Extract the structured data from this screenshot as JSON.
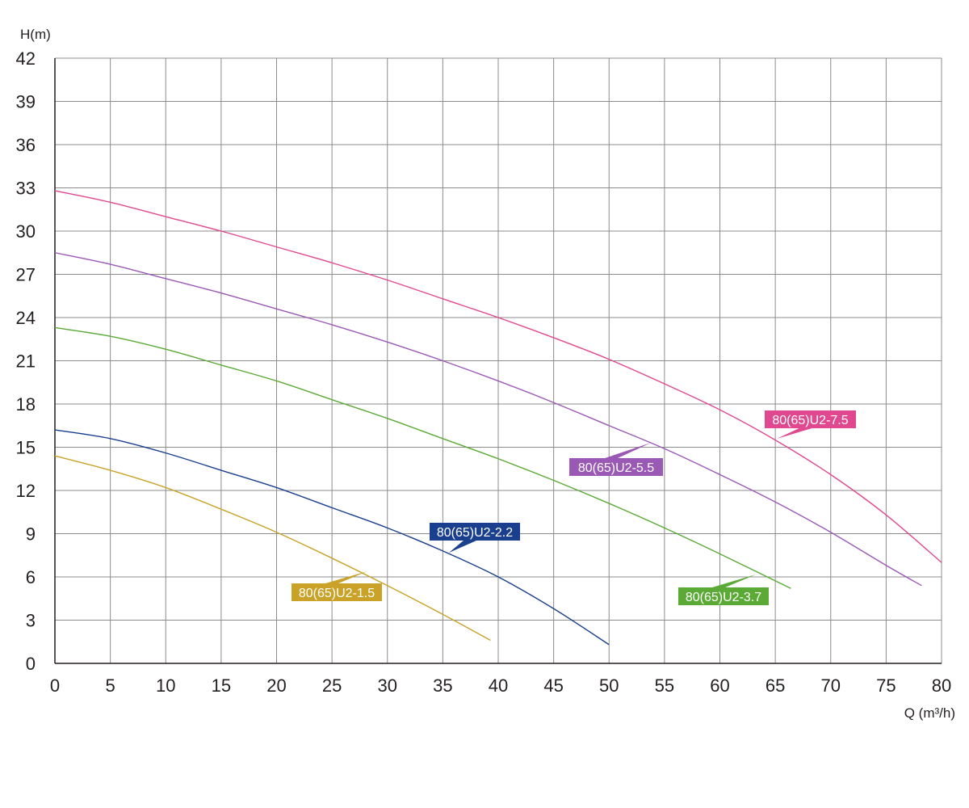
{
  "chart_data": {
    "type": "line",
    "title": "",
    "xlabel": "Q (m³/h)",
    "ylabel": "H(m)",
    "xlim": [
      0,
      80
    ],
    "ylim": [
      0,
      42
    ],
    "xticks": [
      "0",
      "5",
      "10",
      "15",
      "20",
      "25",
      "30",
      "35",
      "40",
      "45",
      "50",
      "55",
      "60",
      "65",
      "70",
      "75",
      "80"
    ],
    "yticks": [
      "0",
      "3",
      "6",
      "9",
      "12",
      "15",
      "18",
      "21",
      "24",
      "27",
      "30",
      "33",
      "36",
      "39",
      "42"
    ],
    "grid": true,
    "legend": "inline tags",
    "colors": {
      "grid": "#8c8c8c",
      "axis": "#231f20",
      "series": [
        "#c9a227",
        "#1a3f8f",
        "#5aaa35",
        "#9b59b6",
        "#e0488f"
      ]
    },
    "series": [
      {
        "name": "80(65)U2-1.5",
        "x": [
          0,
          5,
          10,
          15,
          20,
          25,
          30,
          35,
          39.3
        ],
        "y": [
          14.4,
          13.4,
          12.2,
          10.7,
          9.1,
          7.3,
          5.4,
          3.4,
          1.6
        ]
      },
      {
        "name": "80(65)U2-2.2",
        "x": [
          0,
          5,
          10,
          15,
          20,
          25,
          30,
          35,
          40,
          45,
          50
        ],
        "y": [
          16.2,
          15.6,
          14.6,
          13.4,
          12.2,
          10.8,
          9.4,
          7.8,
          6.0,
          3.8,
          1.3
        ]
      },
      {
        "name": "80(65)U2-3.7",
        "x": [
          0,
          5,
          10,
          15,
          20,
          25,
          30,
          35,
          40,
          45,
          50,
          55,
          60,
          66.4
        ],
        "y": [
          23.3,
          22.7,
          21.8,
          20.7,
          19.6,
          18.3,
          17.0,
          15.6,
          14.2,
          12.7,
          11.1,
          9.4,
          7.6,
          5.2
        ]
      },
      {
        "name": "80(65)U2-5.5",
        "x": [
          0,
          5,
          10,
          15,
          20,
          25,
          30,
          35,
          40,
          45,
          50,
          55,
          60,
          65,
          70,
          75,
          78.2
        ],
        "y": [
          28.5,
          27.7,
          26.7,
          25.7,
          24.6,
          23.5,
          22.3,
          21.0,
          19.6,
          18.1,
          16.5,
          14.9,
          13.1,
          11.2,
          9.1,
          6.8,
          5.4
        ]
      },
      {
        "name": "80(65)U2-7.5",
        "x": [
          0,
          5,
          10,
          15,
          20,
          25,
          30,
          35,
          40,
          45,
          50,
          55,
          60,
          65,
          70,
          75,
          80
        ],
        "y": [
          32.8,
          32.0,
          31.0,
          30.0,
          28.9,
          27.8,
          26.6,
          25.3,
          24.0,
          22.6,
          21.1,
          19.4,
          17.6,
          15.5,
          13.1,
          10.3,
          7.0
        ]
      }
    ]
  }
}
